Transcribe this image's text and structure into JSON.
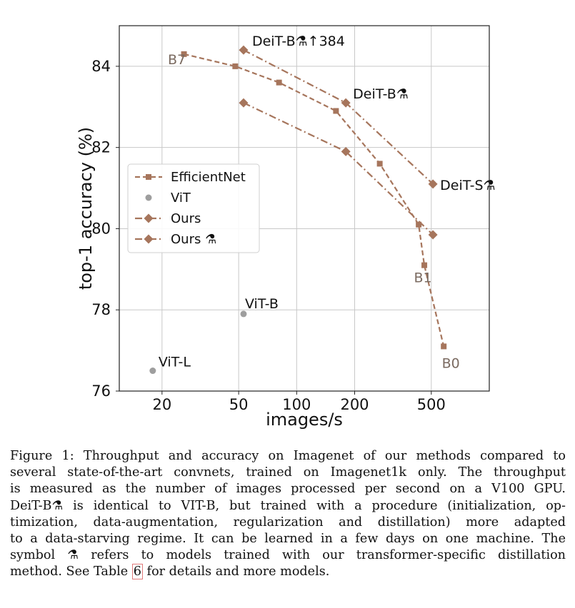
{
  "chart_data": {
    "type": "line",
    "x_scale": "log",
    "xlim": [
      12,
      1000
    ],
    "ylim": [
      76,
      85
    ],
    "xlabel": "images/s",
    "ylabel": "top-1 accuracy (%)",
    "x_ticks": [
      20,
      50,
      100,
      200,
      500
    ],
    "y_ticks": [
      76,
      78,
      80,
      82,
      84
    ],
    "grid": true,
    "legend_position": "center-left",
    "series": [
      {
        "name": "EfficientNet",
        "style": "dashed",
        "marker": "square",
        "color": "#a6755c",
        "x": [
          26,
          48,
          81,
          160,
          270,
          430,
          460,
          580
        ],
        "y": [
          84.3,
          84.0,
          83.6,
          82.9,
          81.6,
          80.1,
          79.1,
          77.1
        ]
      },
      {
        "name": "ViT",
        "style": "none",
        "marker": "circle",
        "color": "#9e9e9e",
        "x": [
          17.9,
          53
        ],
        "y": [
          76.5,
          77.9
        ]
      },
      {
        "name": "Ours",
        "style": "dashdot",
        "marker": "diamond",
        "color": "#a6755c",
        "x": [
          53,
          180,
          510
        ],
        "y": [
          83.1,
          81.9,
          79.85
        ]
      },
      {
        "name": "Ours ⚗",
        "style": "dashdot",
        "marker": "diamond",
        "color": "#a6755c",
        "x": [
          53,
          180,
          510
        ],
        "y": [
          84.4,
          83.1,
          81.1
        ]
      }
    ],
    "annotations": [
      {
        "text": "B7",
        "x": 26,
        "y": 84.3,
        "color": "#7a6a60"
      },
      {
        "text": "B1",
        "x": 460,
        "y": 79.1,
        "color": "#7a6a60"
      },
      {
        "text": "B0",
        "x": 580,
        "y": 77.1,
        "color": "#7a6a60"
      },
      {
        "text": "DeiT-B⚗↑384",
        "x": 53,
        "y": 84.4,
        "color": "#111111"
      },
      {
        "text": "DeiT-B⚗",
        "x": 180,
        "y": 83.1,
        "color": "#111111"
      },
      {
        "text": "DeiT-S⚗",
        "x": 510,
        "y": 81.1,
        "color": "#111111"
      },
      {
        "text": "ViT-B",
        "x": 53,
        "y": 77.9,
        "color": "#111111"
      },
      {
        "text": "ViT-L",
        "x": 17.9,
        "y": 76.5,
        "color": "#111111"
      }
    ]
  },
  "caption": {
    "lines": [
      "Figure 1: Throughput and accuracy on Imagenet of our methods compared to",
      "several state-of-the-art convnets, trained on Imagenet1k only. The throughput",
      "is measured as the number of images processed per second on a V100 GPU.",
      "DeiT-B⚗ is identical to VIT-B, but trained with a procedure (initialization, op-",
      "timization, data-augmentation, regularization and distillation) more adapted",
      "to a data-starving regime. It can be learned in a few days on one machine. The",
      "symbol ⚗ refers to models trained with our transformer-specific distillation"
    ],
    "last_line_before": "method. See Table ",
    "table_ref": "6",
    "last_line_after": " for details and more models."
  }
}
